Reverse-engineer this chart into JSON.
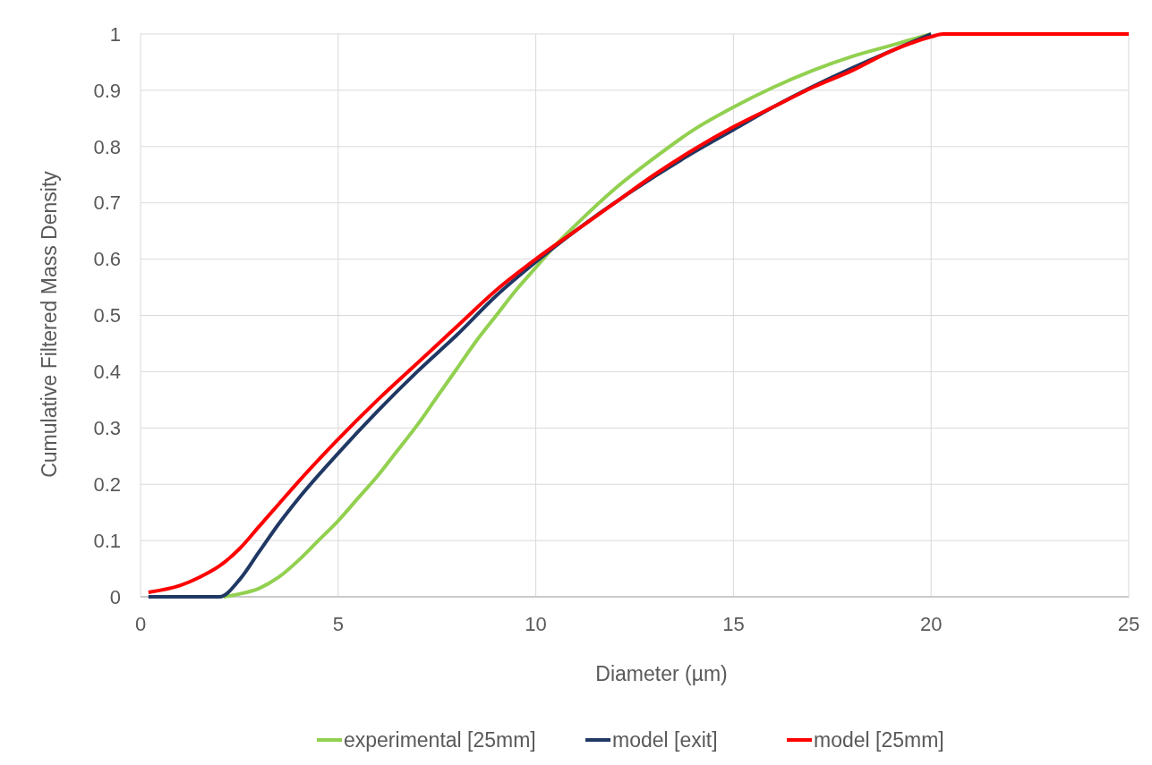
{
  "chart_data": {
    "type": "line",
    "xlabel": "Diameter (µm)",
    "ylabel": "Cumulative Filtered Mass Density",
    "xlim": [
      0,
      25
    ],
    "xticks": [
      0,
      5,
      10,
      15,
      20,
      25
    ],
    "ylim": [
      0,
      1
    ],
    "yticks": [
      0,
      0.1,
      0.2,
      0.3,
      0.4,
      0.5,
      0.6,
      0.7,
      0.8,
      0.9,
      1
    ],
    "grid": true,
    "legend": "bottom",
    "marker": "none",
    "line_style": "solid",
    "series": [
      {
        "name": "experimental [25mm]",
        "color": "#92d050",
        "x": [
          2.1,
          2.5,
          3,
          3.5,
          4,
          4.5,
          5,
          5.5,
          6,
          6.5,
          7,
          7.5,
          8,
          8.5,
          9,
          9.5,
          10,
          10.5,
          11,
          12,
          13,
          14,
          15,
          16,
          17,
          18,
          19,
          20
        ],
        "values": [
          0,
          0.005,
          0.015,
          0.035,
          0.065,
          0.1,
          0.135,
          0.175,
          0.215,
          0.26,
          0.305,
          0.355,
          0.405,
          0.455,
          0.5,
          0.545,
          0.585,
          0.625,
          0.66,
          0.725,
          0.78,
          0.83,
          0.87,
          0.905,
          0.935,
          0.96,
          0.98,
          1
        ]
      },
      {
        "name": "model [exit]",
        "color": "#203864",
        "x": [
          0.2,
          2,
          2.5,
          3,
          3.5,
          4,
          5,
          6,
          7,
          8,
          9,
          10,
          11,
          14,
          15,
          16,
          20
        ],
        "values": [
          0,
          0,
          0.03,
          0.08,
          0.13,
          0.175,
          0.255,
          0.33,
          0.4,
          0.465,
          0.535,
          0.595,
          0.65,
          0.79,
          0.83,
          0.87,
          1
        ]
      },
      {
        "name": "model [25mm]",
        "color": "#ff0000",
        "x": [
          0.2,
          1,
          1.5,
          2,
          2.5,
          3,
          3.5,
          4,
          5,
          6,
          7,
          8,
          9,
          10,
          11,
          12,
          13,
          14,
          15,
          16,
          17,
          18,
          19,
          20,
          20.3,
          25
        ],
        "values": [
          0.008,
          0.02,
          0.035,
          0.055,
          0.085,
          0.125,
          0.165,
          0.205,
          0.28,
          0.35,
          0.415,
          0.48,
          0.545,
          0.6,
          0.65,
          0.7,
          0.75,
          0.795,
          0.835,
          0.87,
          0.905,
          0.935,
          0.97,
          0.995,
          1,
          1
        ]
      }
    ]
  }
}
